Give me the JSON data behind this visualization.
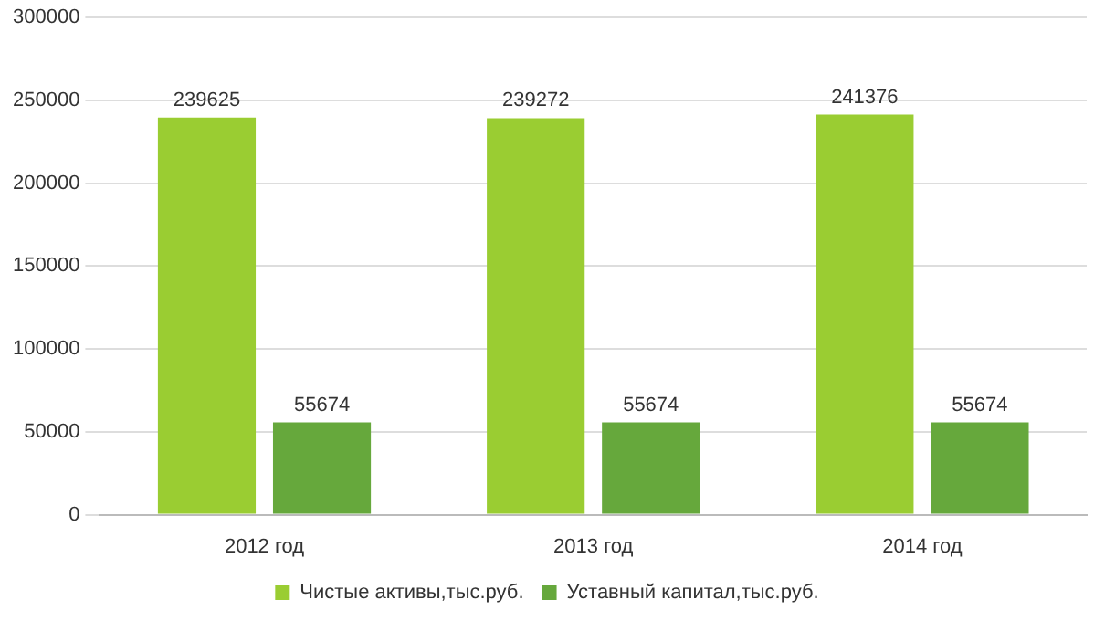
{
  "chart_data": {
    "type": "bar",
    "categories": [
      "2012 год",
      "2013 год",
      "2014 год"
    ],
    "series": [
      {
        "name": "Чистые активы,тыс.руб.",
        "color": "#9acd32",
        "values": [
          239625,
          239272,
          241376
        ]
      },
      {
        "name": "Уставный капитал,тыс.руб.",
        "color": "#66a83c",
        "values": [
          55674,
          55674,
          55674
        ]
      }
    ],
    "ylim": [
      0,
      300000
    ],
    "yticks": [
      0,
      50000,
      100000,
      150000,
      200000,
      250000,
      300000
    ],
    "grid": "y",
    "legend": "bottom",
    "data_labels": true
  }
}
